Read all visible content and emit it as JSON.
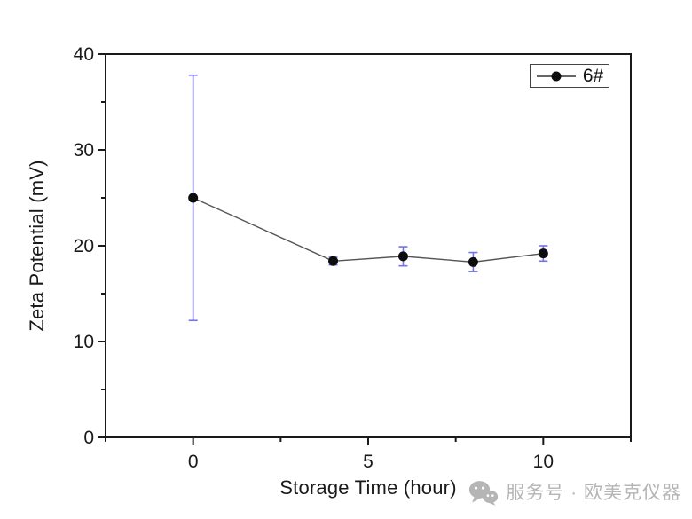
{
  "chart_data": {
    "type": "line",
    "title": "",
    "xlabel": "Storage Time (hour)",
    "ylabel": "Zeta Potential (mV)",
    "series": [
      {
        "name": "6#",
        "x": [
          0,
          4,
          6,
          8,
          10
        ],
        "y": [
          25.0,
          18.4,
          18.9,
          18.3,
          19.2
        ],
        "yerr": [
          12.8,
          0.4,
          1.0,
          1.0,
          0.8
        ],
        "marker": "filled-circle",
        "marker_color": "#0d0d0d",
        "line_color": "#555555",
        "error_color": "#7474e8"
      }
    ],
    "xlim": [
      -2.5,
      12.5
    ],
    "ylim": [
      0,
      40
    ],
    "xticks": [
      0,
      5,
      10
    ],
    "yticks": [
      0,
      10,
      20,
      30,
      40
    ],
    "x_minor_ticks": [
      -2.5,
      2.5,
      7.5,
      12.5
    ],
    "y_minor_ticks": [
      5,
      15,
      25,
      35
    ],
    "grid": false,
    "legend_position": "top-right",
    "axis_color": "#1a1a1a",
    "tick_label_color": "#1a1a1a"
  },
  "legend": {
    "label": "6#"
  },
  "watermark": {
    "icon": "wechat-icon",
    "text": "服务号 · 欧美克仪器",
    "color": "#b5b5b5"
  },
  "colors": {
    "background": "#ffffff"
  }
}
